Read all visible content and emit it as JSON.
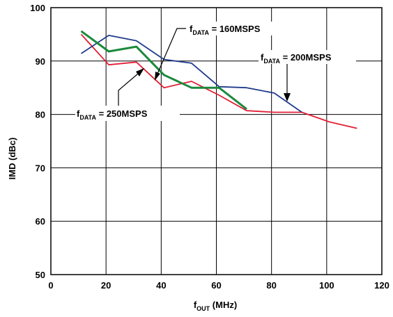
{
  "chart_data": {
    "type": "line",
    "xlabel": {
      "main": "f",
      "sub": "OUT",
      "rest": " (MHz)"
    },
    "ylabel": "IMD (dBc)",
    "xlim": [
      0,
      120
    ],
    "ylim": [
      50,
      100
    ],
    "xticks": [
      "0",
      "20",
      "40",
      "60",
      "80",
      "100",
      "120"
    ],
    "yticks": [
      "50",
      "60",
      "70",
      "80",
      "90",
      "100"
    ],
    "grid": true,
    "series": [
      {
        "name": "fDATA = 160MSPS",
        "label": {
          "main": "f",
          "sub": "DATA",
          "rest": " = 160MSPS"
        },
        "color": "#1f3b8c",
        "x": [
          11,
          21,
          31,
          41,
          51,
          61,
          71,
          81,
          91
        ],
        "y": [
          91.4,
          94.8,
          93.8,
          90.3,
          89.6,
          85.2,
          85.0,
          84.0,
          80.4
        ]
      },
      {
        "name": "fDATA = 200MSPS",
        "label": {
          "main": "f",
          "sub": "DATA",
          "rest": " = 200MSPS"
        },
        "color": "#e21f36",
        "x": [
          11,
          21,
          31,
          41,
          51,
          61,
          71,
          81,
          91,
          101,
          111
        ],
        "y": [
          95.0,
          89.3,
          89.8,
          85.0,
          86.2,
          83.6,
          80.7,
          80.4,
          80.4,
          78.6,
          77.4
        ]
      },
      {
        "name": "fDATA = 250MSPS",
        "label": {
          "main": "f",
          "sub": "DATA",
          "rest": " = 250MSPS"
        },
        "color": "#1b8a3c",
        "x": [
          11,
          21,
          31,
          41,
          51,
          61,
          71
        ],
        "y": [
          95.6,
          91.8,
          92.7,
          87.4,
          85.0,
          85.0,
          81.0
        ]
      }
    ]
  }
}
